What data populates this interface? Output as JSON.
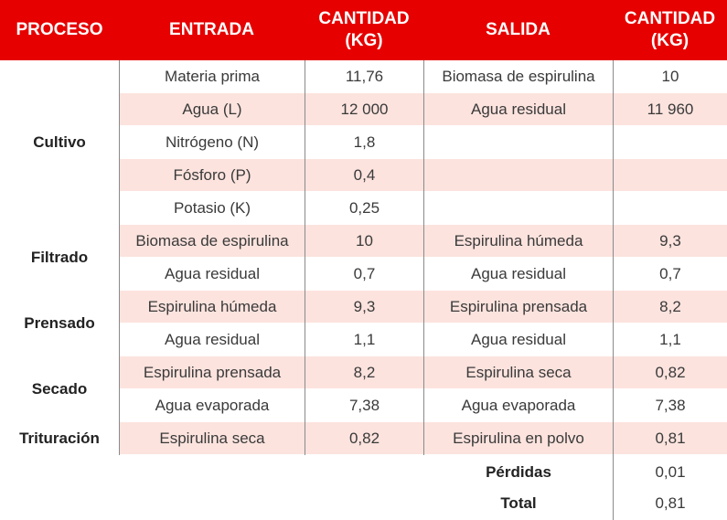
{
  "header": {
    "proceso": "PROCESO",
    "entrada": "ENTRADA",
    "cantidad_in_1": "CANTIDAD",
    "cantidad_in_2": "(KG)",
    "salida": "SALIDA",
    "cantidad_out_1": "CANTIDAD",
    "cantidad_out_2": "(KG)"
  },
  "colors": {
    "header_bg": "#e60000",
    "stripe": "#fce3de",
    "divider": "#8a8a8a"
  },
  "processes": [
    "Cultivo",
    "Filtrado",
    "Prensado",
    "Secado",
    "Trituración"
  ],
  "rows": [
    {
      "entrada": "Materia prima",
      "cantidad_entrada": "11,76",
      "salida": "Biomasa de espirulina",
      "cantidad_salida": "10"
    },
    {
      "entrada": "Agua (L)",
      "cantidad_entrada": "12 000",
      "salida": "Agua residual",
      "cantidad_salida": "11 960"
    },
    {
      "entrada": "Nitrógeno (N)",
      "cantidad_entrada": "1,8",
      "salida": "",
      "cantidad_salida": ""
    },
    {
      "entrada": "Fósforo (P)",
      "cantidad_entrada": "0,4",
      "salida": "",
      "cantidad_salida": ""
    },
    {
      "entrada": "Potasio (K)",
      "cantidad_entrada": "0,25",
      "salida": "",
      "cantidad_salida": ""
    },
    {
      "entrada": "Biomasa de espirulina",
      "cantidad_entrada": "10",
      "salida": "Espirulina húmeda",
      "cantidad_salida": "9,3"
    },
    {
      "entrada": "Agua residual",
      "cantidad_entrada": "0,7",
      "salida": "Agua residual",
      "cantidad_salida": "0,7"
    },
    {
      "entrada": "Espirulina húmeda",
      "cantidad_entrada": "9,3",
      "salida": "Espirulina prensada",
      "cantidad_salida": "8,2"
    },
    {
      "entrada": "Agua residual",
      "cantidad_entrada": "1,1",
      "salida": "Agua residual",
      "cantidad_salida": "1,1"
    },
    {
      "entrada": "Espirulina prensada",
      "cantidad_entrada": "8,2",
      "salida": "Espirulina seca",
      "cantidad_salida": "0,82"
    },
    {
      "entrada": "Agua evaporada",
      "cantidad_entrada": "7,38",
      "salida": "Agua evaporada",
      "cantidad_salida": "7,38"
    },
    {
      "entrada": "Espirulina seca",
      "cantidad_entrada": "0,82",
      "salida": "Espirulina en polvo",
      "cantidad_salida": "0,81"
    }
  ],
  "footer": {
    "perdidas_label": "Pérdidas",
    "perdidas_value": "0,01",
    "total_label": "Total",
    "total_value": "0,81"
  }
}
